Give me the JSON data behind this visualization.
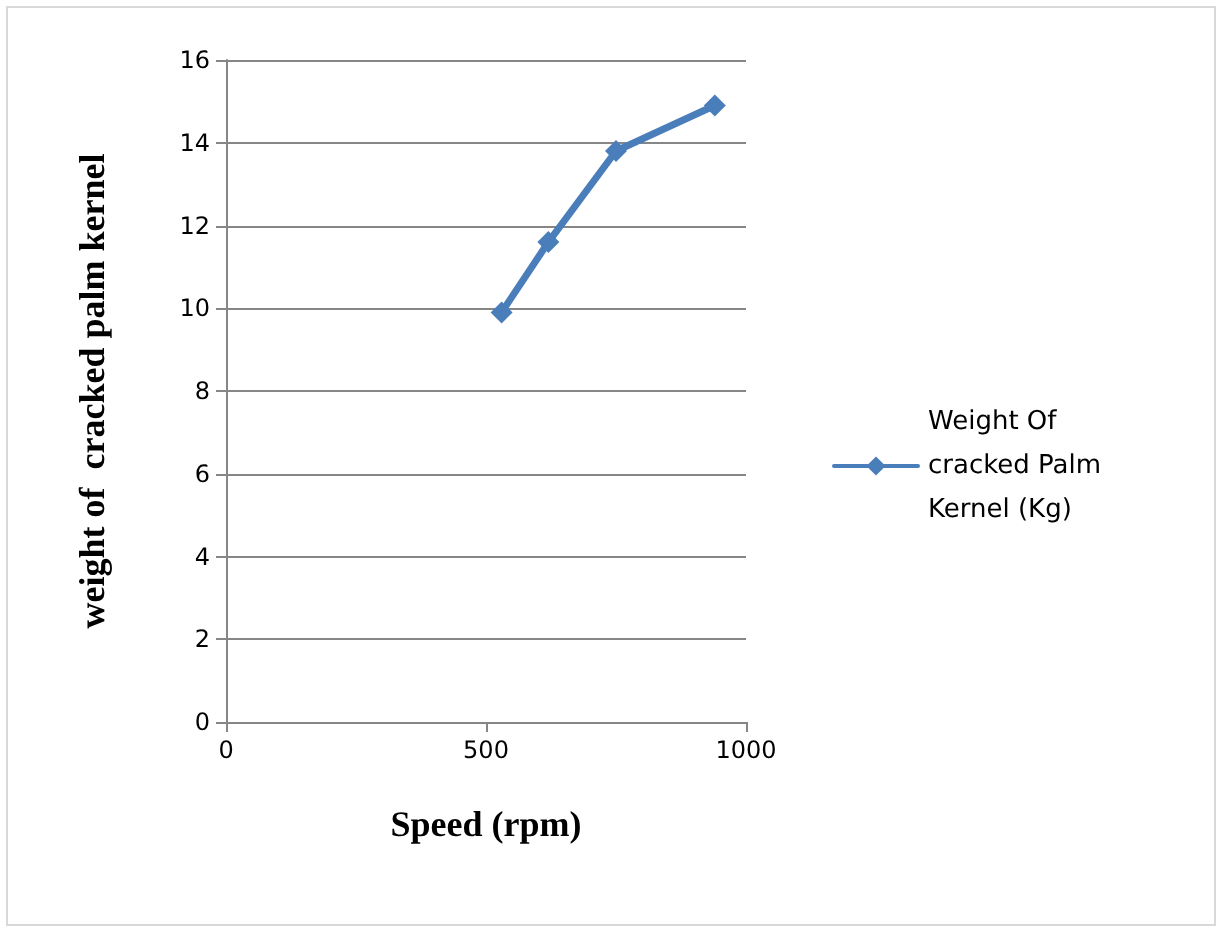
{
  "chart_data": {
    "type": "line",
    "xlabel": "Speed (rpm)",
    "ylabel": "weight of  cracked palm kernel",
    "x": [
      530,
      620,
      750,
      940
    ],
    "series": [
      {
        "name": "Weight Of cracked Palm Kernel (Kg)",
        "color": "#4a7ebb",
        "values": [
          9.9,
          11.6,
          13.8,
          14.9
        ]
      }
    ],
    "xlim": [
      0,
      1000
    ],
    "xticks": [
      0,
      500,
      1000
    ],
    "ylim": [
      0,
      16
    ],
    "yticks": [
      0,
      2,
      4,
      6,
      8,
      10,
      12,
      14,
      16
    ],
    "grid": "y",
    "legend": "right",
    "marker": "diamond",
    "line_style": "solid"
  }
}
